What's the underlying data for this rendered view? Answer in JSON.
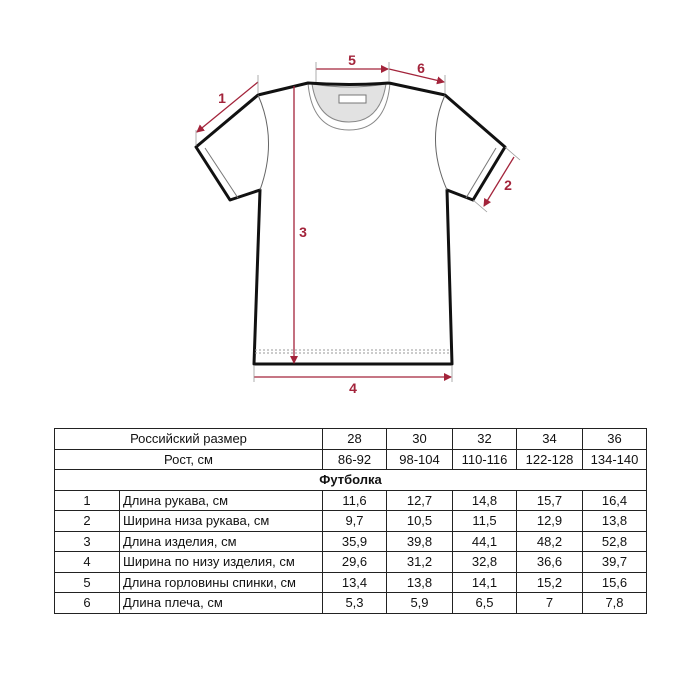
{
  "diagram": {
    "item": "t-shirt",
    "accent_color": "#a3243b",
    "labels": [
      "1",
      "2",
      "3",
      "4",
      "5",
      "6"
    ]
  },
  "table": {
    "header_size_label": "Российский размер",
    "sizes": [
      "28",
      "30",
      "32",
      "34",
      "36"
    ],
    "header_height_label": "Рост, см",
    "heights": [
      "86-92",
      "98-104",
      "110-116",
      "122-128",
      "134-140"
    ],
    "section_title": "Футболка",
    "rows": [
      {
        "num": "1",
        "name": "Длина рукава, см",
        "values": [
          "11,6",
          "12,7",
          "14,8",
          "15,7",
          "16,4"
        ]
      },
      {
        "num": "2",
        "name": "Ширина низа рукава, см",
        "values": [
          "9,7",
          "10,5",
          "11,5",
          "12,9",
          "13,8"
        ]
      },
      {
        "num": "3",
        "name": "Длина изделия, см",
        "values": [
          "35,9",
          "39,8",
          "44,1",
          "48,2",
          "52,8"
        ]
      },
      {
        "num": "4",
        "name": "Ширина по низу изделия, см",
        "values": [
          "29,6",
          "31,2",
          "32,8",
          "36,6",
          "39,7"
        ]
      },
      {
        "num": "5",
        "name": "Длина горловины спинки, см",
        "values": [
          "13,4",
          "13,8",
          "14,1",
          "15,2",
          "15,6"
        ]
      },
      {
        "num": "6",
        "name": "Длина плеча, см",
        "values": [
          "5,3",
          "5,9",
          "6,5",
          "7",
          "7,8"
        ]
      }
    ]
  }
}
